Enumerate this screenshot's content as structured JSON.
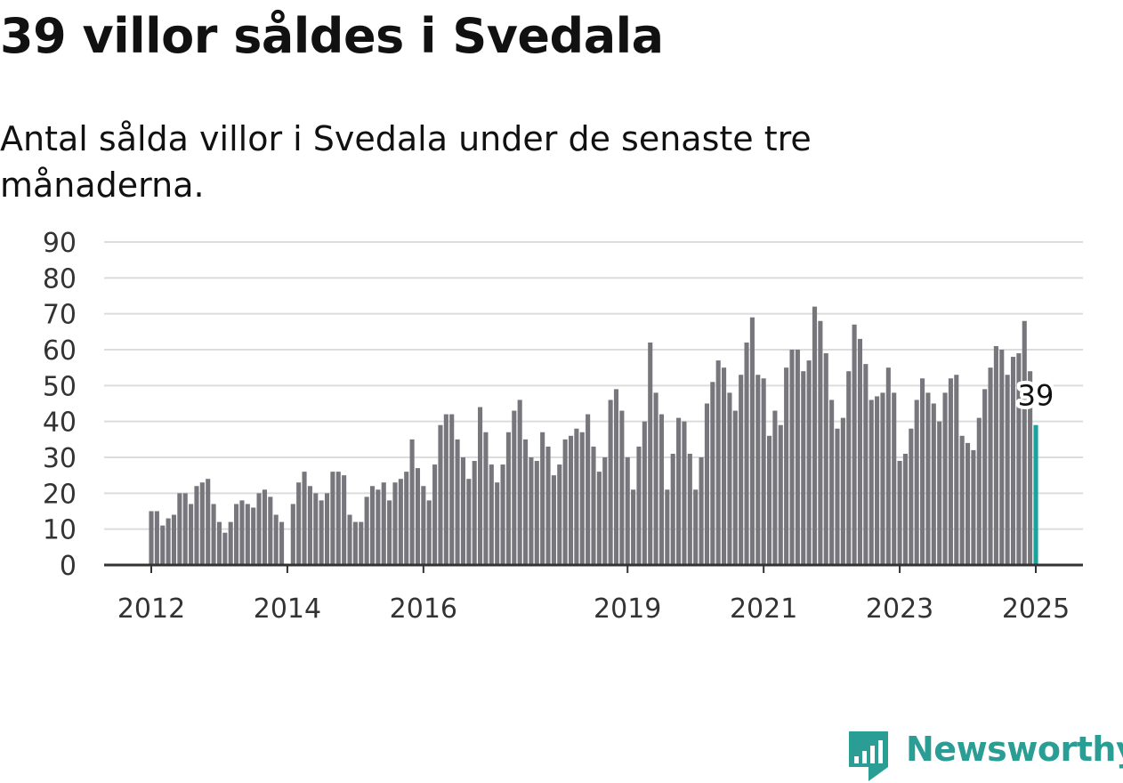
{
  "header": {
    "title": "39 villor såldes i Svedala",
    "subtitle": "Antal sålda villor i Svedala under de senaste tre månaderna."
  },
  "brand": {
    "name": "Newsworthy",
    "color": "#2a9d94"
  },
  "chart_data": {
    "type": "bar",
    "x_start": "2012-01",
    "x_end": "2025-01",
    "x_tick_labels": [
      "2012",
      "2014",
      "2016",
      "2019",
      "2021",
      "2023",
      "2025"
    ],
    "y_ticks": [
      0,
      10,
      20,
      30,
      40,
      50,
      60,
      70,
      80,
      90
    ],
    "ylim": [
      0,
      90
    ],
    "grid": true,
    "bar_color": "#76767c",
    "highlight_color": "#1aa39a",
    "highlight_label": "39",
    "values": [
      15,
      15,
      11,
      13,
      14,
      20,
      20,
      17,
      22,
      23,
      24,
      17,
      12,
      9,
      12,
      17,
      18,
      17,
      16,
      20,
      21,
      19,
      14,
      12,
      null,
      17,
      23,
      26,
      22,
      20,
      18,
      20,
      26,
      26,
      25,
      14,
      12,
      12,
      19,
      22,
      21,
      23,
      18,
      23,
      24,
      26,
      35,
      27,
      22,
      18,
      28,
      39,
      42,
      42,
      35,
      30,
      24,
      29,
      44,
      37,
      28,
      23,
      28,
      37,
      43,
      46,
      35,
      30,
      29,
      37,
      33,
      25,
      28,
      35,
      36,
      38,
      37,
      42,
      33,
      26,
      30,
      46,
      49,
      43,
      30,
      21,
      33,
      40,
      62,
      48,
      42,
      21,
      31,
      41,
      40,
      31,
      21,
      30,
      45,
      51,
      57,
      55,
      48,
      43,
      53,
      62,
      69,
      53,
      52,
      36,
      43,
      39,
      55,
      60,
      60,
      54,
      57,
      72,
      68,
      59,
      46,
      38,
      41,
      54,
      67,
      63,
      56,
      46,
      47,
      48,
      55,
      48,
      29,
      31,
      38,
      46,
      52,
      48,
      45,
      40,
      48,
      52,
      53,
      36,
      34,
      32,
      41,
      49,
      55,
      61,
      60,
      53,
      58,
      59,
      68,
      54,
      39
    ]
  }
}
